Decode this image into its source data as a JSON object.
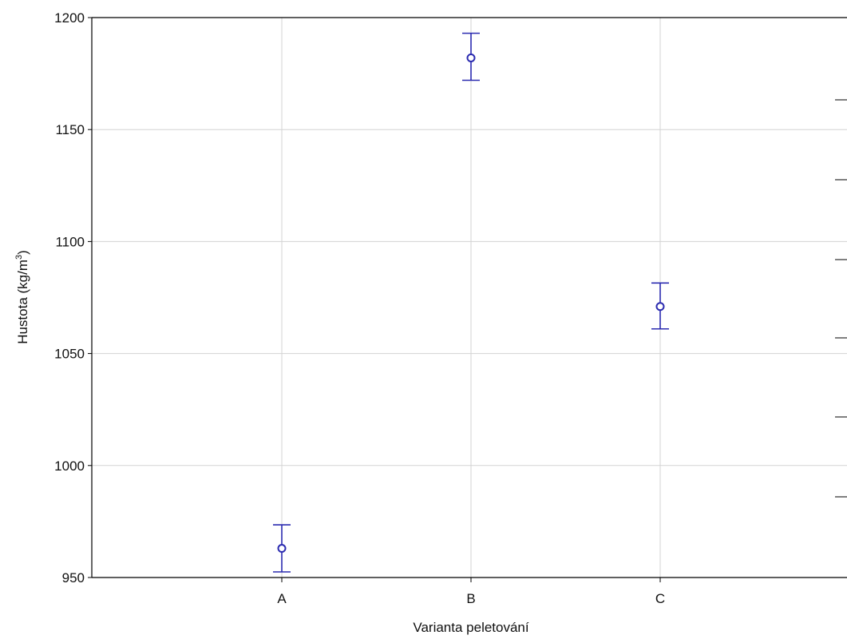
{
  "chart_data": {
    "type": "scatter",
    "xlabel": "Varianta peletování",
    "ylabel": {
      "before": "Hustota (kg/m",
      "sup": "3",
      "after": ")"
    },
    "categories": [
      "A",
      "B",
      "C"
    ],
    "series": [
      {
        "points": [
          {
            "x": "A",
            "y": 963,
            "low": 952.5,
            "high": 973.5
          },
          {
            "x": "B",
            "y": 1182,
            "low": 1172,
            "high": 1193
          },
          {
            "x": "C",
            "y": 1071,
            "low": 1061,
            "high": 1081.5
          }
        ],
        "color": "#2b2bb0"
      }
    ],
    "ylim": [
      950,
      1200
    ],
    "yticks": [
      950,
      1000,
      1050,
      1100,
      1150,
      1200
    ],
    "ytick_labels": [
      "950",
      "1000",
      "1050",
      "1100",
      "1150",
      "1200"
    ],
    "grid": true,
    "colors": {
      "grid": "#d3d3d3",
      "axis": "#000000",
      "series": "#2b2bb0"
    }
  }
}
